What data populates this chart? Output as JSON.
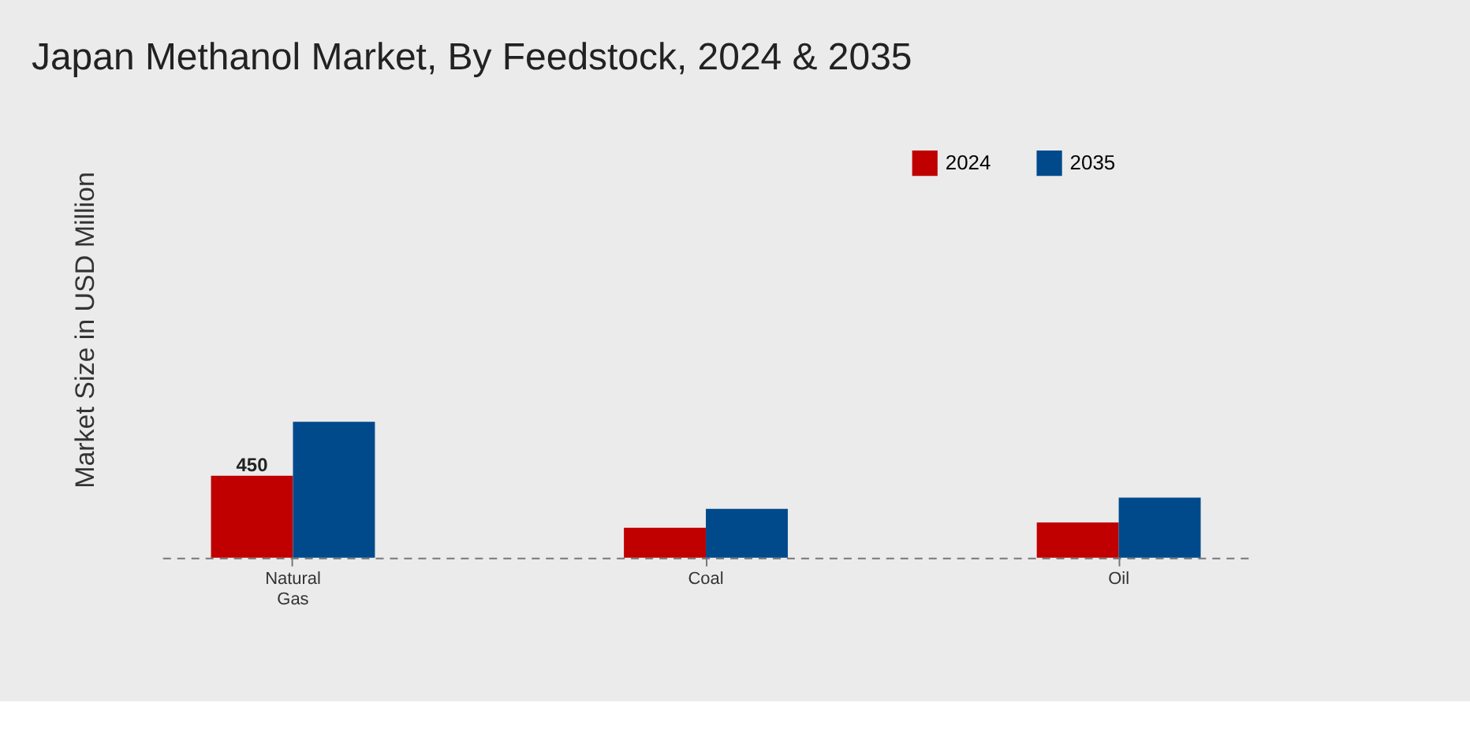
{
  "chart_data": {
    "type": "bar",
    "title": "Japan Methanol Market, By Feedstock, 2024 & 2035",
    "ylabel": "Market Size in USD Million",
    "categories": [
      "Natural Gas",
      "Coal",
      "Oil"
    ],
    "series": [
      {
        "name": "2024",
        "color": "#c00000",
        "values": [
          450,
          164,
          193
        ],
        "value_labels": [
          "450",
          null,
          null
        ]
      },
      {
        "name": "2035",
        "color": "#004a8c",
        "values": [
          746,
          268,
          330
        ]
      }
    ],
    "legend": "top right",
    "grid": false
  }
}
